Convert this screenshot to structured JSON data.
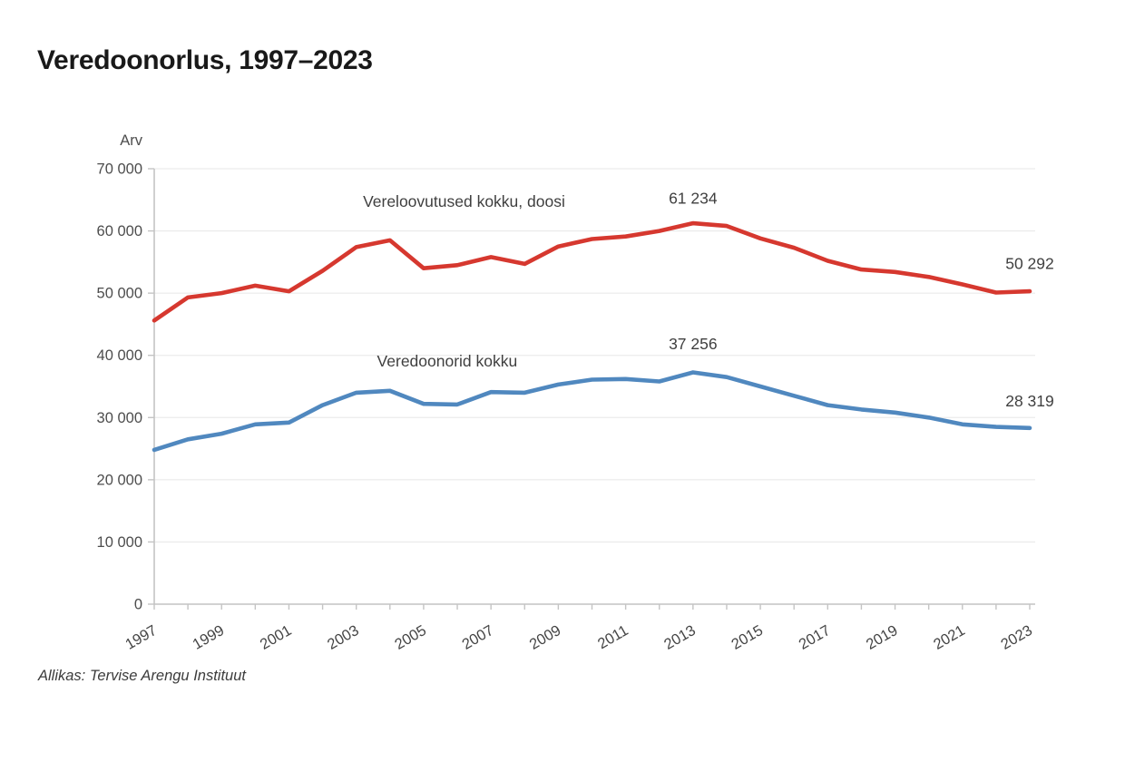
{
  "page": {
    "title": "Veredoonorlus, 1997–2023",
    "source": "Allikas: Tervise Arengu Instituut"
  },
  "chart_data": {
    "type": "line",
    "title": "Veredoonorlus, 1997–2023",
    "xlabel": "",
    "ylabel": "Arv",
    "x": [
      1997,
      1998,
      1999,
      2000,
      2001,
      2002,
      2003,
      2004,
      2005,
      2006,
      2007,
      2008,
      2009,
      2010,
      2011,
      2012,
      2013,
      2014,
      2015,
      2016,
      2017,
      2018,
      2019,
      2020,
      2021,
      2022,
      2023
    ],
    "x_tick_labels": [
      "1997",
      "1999",
      "2001",
      "2003",
      "2005",
      "2007",
      "2009",
      "2011",
      "2013",
      "2015",
      "2017",
      "2019",
      "2021",
      "2023"
    ],
    "ylim": [
      0,
      70000
    ],
    "y_ticks": [
      0,
      10000,
      20000,
      30000,
      40000,
      50000,
      60000,
      70000
    ],
    "y_tick_labels": [
      "0",
      "10 000",
      "20 000",
      "30 000",
      "40 000",
      "50 000",
      "60 000",
      "70 000"
    ],
    "grid": "horizontal",
    "legend": "inline-series-labels",
    "series": [
      {
        "name": "Vereloovutused kokku, doosi",
        "color": "#d6382f",
        "values": [
          45600,
          49300,
          50000,
          51200,
          50300,
          53600,
          57400,
          58500,
          54000,
          54500,
          55800,
          54700,
          57500,
          58700,
          59100,
          60000,
          61234,
          60800,
          58800,
          57300,
          55200,
          53800,
          53400,
          52600,
          51400,
          50100,
          50292
        ]
      },
      {
        "name": "Veredoonorid kokku",
        "color": "#5088bf",
        "values": [
          24800,
          26500,
          27400,
          28900,
          29200,
          32000,
          34000,
          34300,
          32200,
          32100,
          34100,
          34000,
          35300,
          36100,
          36200,
          35800,
          37256,
          36500,
          35000,
          33500,
          32000,
          31300,
          30800,
          30000,
          28900,
          28500,
          28319
        ]
      }
    ],
    "annotations": [
      {
        "text": "Vereloovutused kokku, doosi",
        "year": 2006.2,
        "value": 63900,
        "role": "series-label"
      },
      {
        "text": "61 234",
        "year": 2013,
        "value": 64400,
        "role": "peak-value"
      },
      {
        "text": "50 292",
        "year": 2023,
        "value": 53900,
        "role": "end-value"
      },
      {
        "text": "Veredoonorid kokku",
        "year": 2005.7,
        "value": 38200,
        "role": "series-label"
      },
      {
        "text": "37 256",
        "year": 2013,
        "value": 41000,
        "role": "peak-value"
      },
      {
        "text": "28 319",
        "year": 2023,
        "value": 31800,
        "role": "end-value"
      }
    ]
  }
}
